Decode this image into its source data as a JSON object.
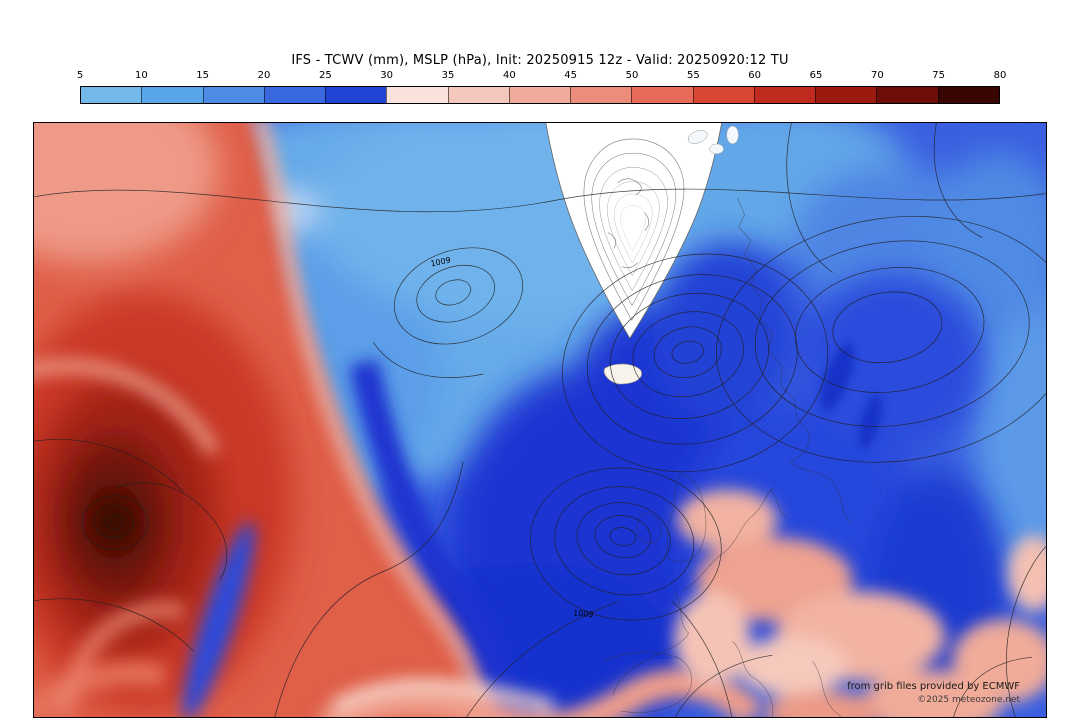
{
  "header": {
    "title": "IFS - TCWV (mm), MSLP (hPa), Init: 20250915 12z - Valid: 20250920:12 TU"
  },
  "colorbar": {
    "ticks": [
      "5",
      "10",
      "15",
      "20",
      "25",
      "30",
      "35",
      "40",
      "45",
      "50",
      "55",
      "60",
      "65",
      "70",
      "75",
      "80"
    ],
    "colors": [
      "#74b9ec",
      "#58a6e8",
      "#4d8ce4",
      "#3a68de",
      "#2244d4",
      "#f8e2db",
      "#f5c8bd",
      "#f1ab9d",
      "#ec8c7b",
      "#e66c59",
      "#d94734",
      "#bf2c1f",
      "#9a1a10",
      "#6d0f08",
      "#380502"
    ]
  },
  "map": {
    "contour_labels": {
      "l1": "1009",
      "l2": "1009"
    },
    "attribution": {
      "line1": "from grib files provided by ECMWF",
      "line2": "©2025 meteozone.net"
    }
  }
}
